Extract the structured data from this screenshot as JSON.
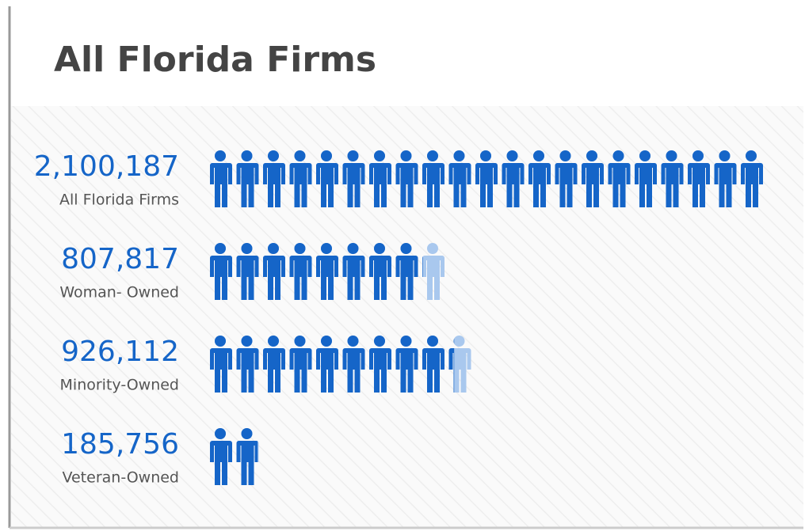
{
  "chart_data": {
    "type": "pictogram",
    "title": "All Florida Firms",
    "categories": [
      "All Florida Firms",
      "Woman- Owned",
      "Minority-Owned",
      "Veteran-Owned"
    ],
    "values": [
      2100187,
      807817,
      926112,
      185756
    ],
    "value_labels": [
      "2,100,187",
      "807,817",
      "926,112",
      "185,756"
    ],
    "color": "#1565c8",
    "light_color": "#a9c8ee"
  }
}
